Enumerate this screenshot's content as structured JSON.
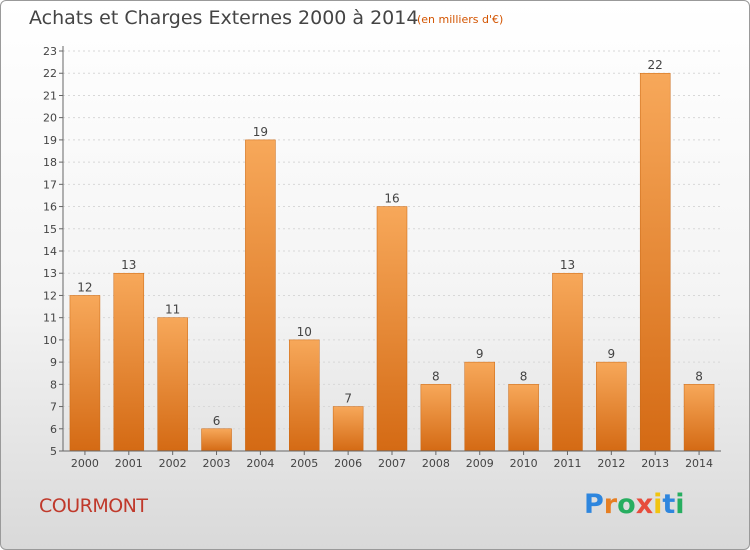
{
  "chart_data": {
    "type": "bar",
    "title": "Achats et Charges Externes 2000 à 2014",
    "subtitle": "(en milliers d'€)",
    "categories": [
      "2000",
      "2001",
      "2002",
      "2003",
      "2004",
      "2005",
      "2006",
      "2007",
      "2008",
      "2009",
      "2010",
      "2011",
      "2012",
      "2013",
      "2014"
    ],
    "values": [
      12,
      13,
      11,
      6,
      19,
      10,
      7,
      16,
      8,
      9,
      8,
      13,
      9,
      22,
      8
    ],
    "ylim": [
      5,
      23
    ],
    "yticks": [
      5,
      6,
      7,
      8,
      9,
      10,
      11,
      12,
      13,
      14,
      15,
      16,
      17,
      18,
      19,
      20,
      21,
      22,
      23
    ],
    "grid": true,
    "bar_color": "#f0903a"
  },
  "footer": {
    "location": "COURMONT",
    "brand_letters": [
      {
        "ch": "P",
        "color": "#2e86de"
      },
      {
        "ch": "r",
        "color": "#e67e22"
      },
      {
        "ch": "o",
        "color": "#27ae60"
      },
      {
        "ch": "x",
        "color": "#e74c3c"
      },
      {
        "ch": "i",
        "color": "#f1c40f"
      },
      {
        "ch": "t",
        "color": "#2e86de"
      },
      {
        "ch": "i",
        "color": "#27ae60"
      }
    ]
  }
}
